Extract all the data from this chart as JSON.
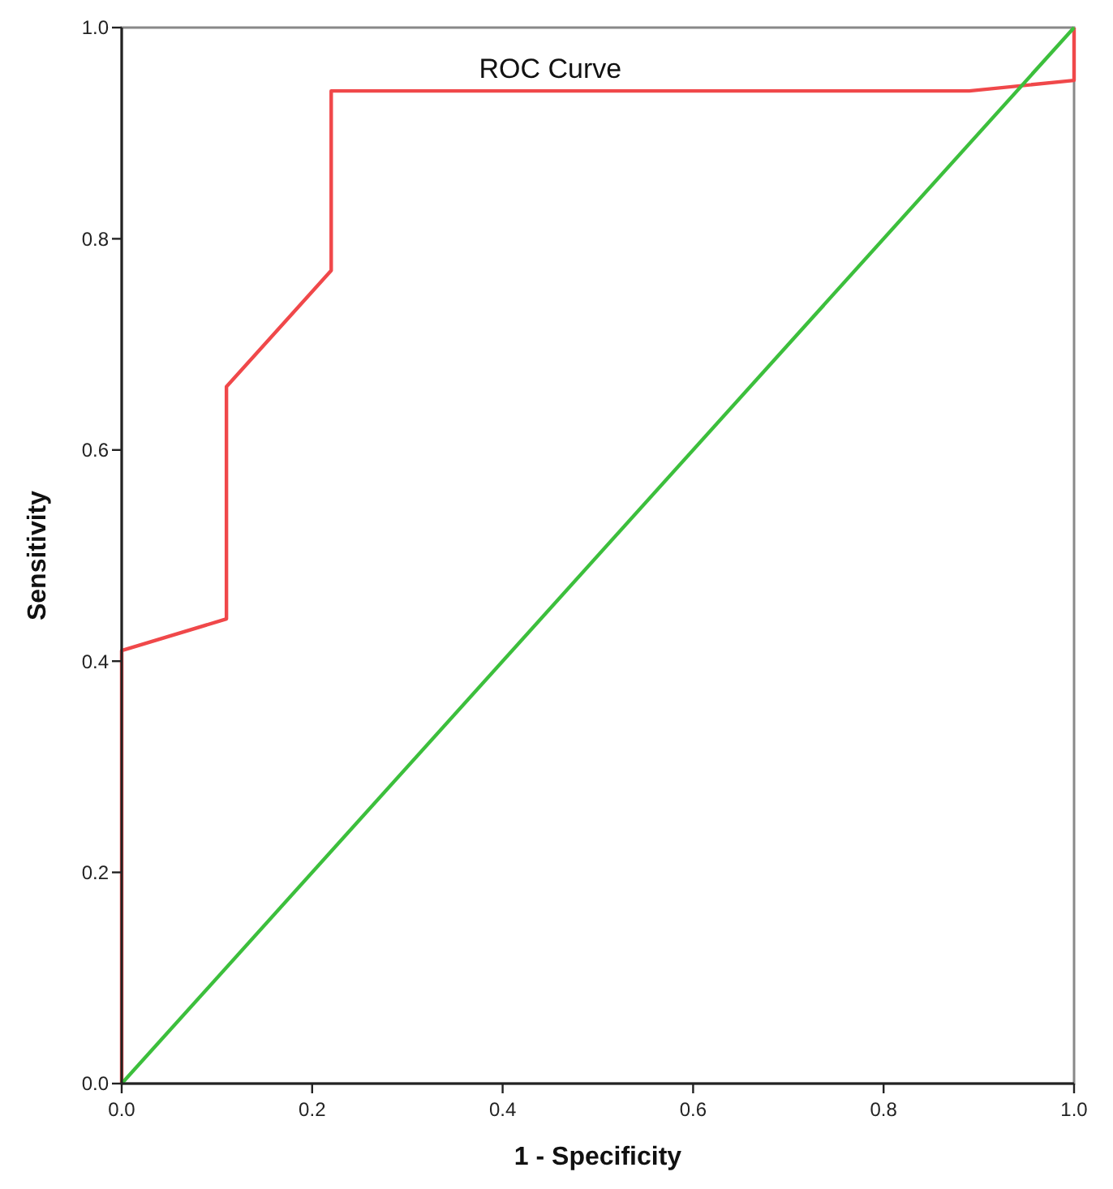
{
  "chart_data": {
    "type": "line",
    "title": "ROC Curve",
    "xlabel": "1 - Specificity",
    "ylabel": "Sensitivity",
    "series": [
      {
        "color": "#f0484a",
        "x": [
          0,
          0,
          0.11,
          0.11,
          0.22,
          0.22,
          0.89,
          1,
          1
        ],
        "values": [
          0,
          0.41,
          0.44,
          0.66,
          0.77,
          0.94,
          0.94,
          0.95,
          1
        ]
      },
      {
        "color": "#3cbf3c",
        "x": [
          0,
          1
        ],
        "values": [
          0,
          1
        ]
      }
    ],
    "xlim": [
      0,
      1
    ],
    "ylim": [
      0,
      1
    ],
    "xticks": [
      {
        "value": 0,
        "label": "0.0"
      },
      {
        "value": 0.2,
        "label": "0.2"
      },
      {
        "value": 0.4,
        "label": "0.4"
      },
      {
        "value": 0.6,
        "label": "0.6"
      },
      {
        "value": 0.8,
        "label": "0.8"
      },
      {
        "value": 1,
        "label": "1.0"
      }
    ],
    "yticks": [
      {
        "value": 0,
        "label": "0.0"
      },
      {
        "value": 0.2,
        "label": "0.2"
      },
      {
        "value": 0.4,
        "label": "0.4"
      },
      {
        "value": 0.6,
        "label": "0.6"
      },
      {
        "value": 0.8,
        "label": "0.8"
      },
      {
        "value": 1,
        "label": "1.0"
      }
    ],
    "grid": false,
    "marker": "none",
    "line_style": "solid"
  }
}
